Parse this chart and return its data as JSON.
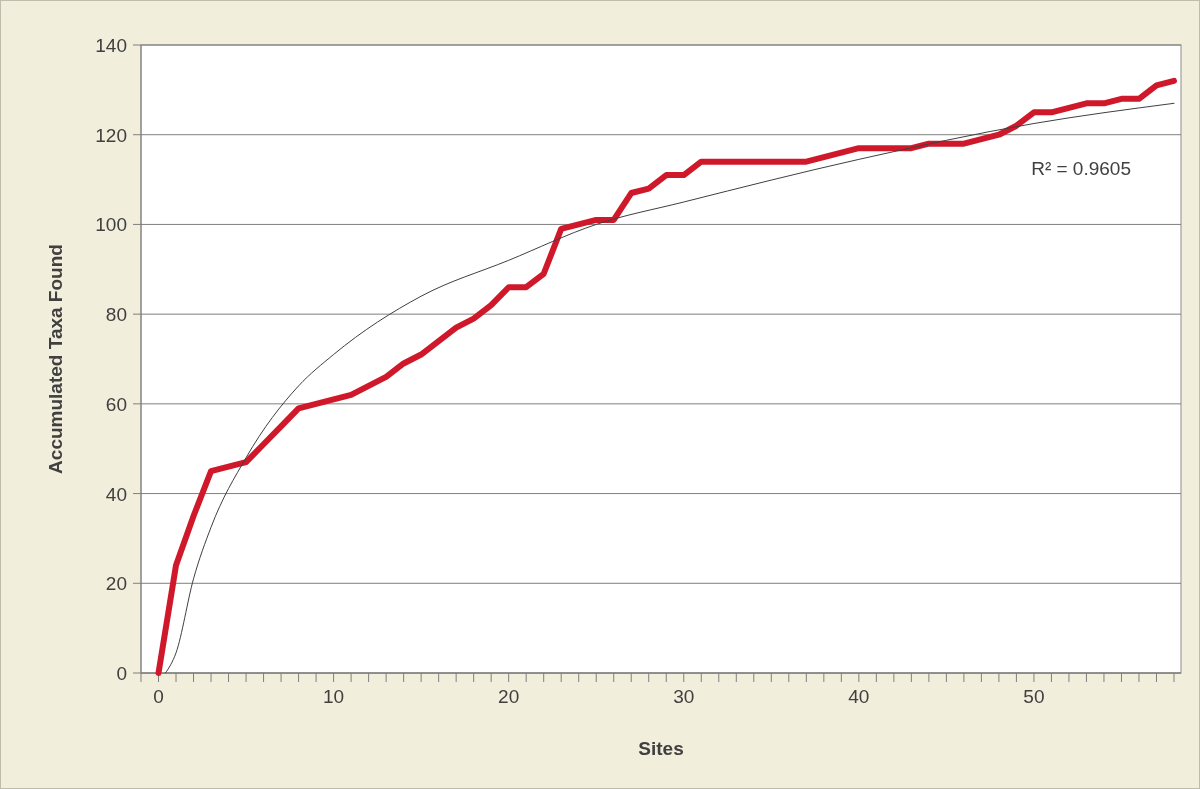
{
  "chart_data": {
    "type": "line",
    "xlabel": "Sites",
    "ylabel": "Accumulated Taxa Found",
    "xlim": [
      -1,
      58.4
    ],
    "ylim": [
      0,
      140
    ],
    "xticks": [
      {
        "value": -1,
        "label": null
      },
      0,
      {
        "value": 1,
        "label": null
      },
      {
        "value": 2,
        "label": null
      },
      {
        "value": 3,
        "label": null
      },
      {
        "value": 4,
        "label": null
      },
      {
        "value": 5,
        "label": null
      },
      {
        "value": 6,
        "label": null
      },
      {
        "value": 7,
        "label": null
      },
      {
        "value": 8,
        "label": null
      },
      {
        "value": 9,
        "label": null
      },
      10,
      {
        "value": 11,
        "label": null
      },
      {
        "value": 12,
        "label": null
      },
      {
        "value": 13,
        "label": null
      },
      {
        "value": 14,
        "label": null
      },
      {
        "value": 15,
        "label": null
      },
      {
        "value": 16,
        "label": null
      },
      {
        "value": 17,
        "label": null
      },
      {
        "value": 18,
        "label": null
      },
      {
        "value": 19,
        "label": null
      },
      20,
      {
        "value": 21,
        "label": null
      },
      {
        "value": 22,
        "label": null
      },
      {
        "value": 23,
        "label": null
      },
      {
        "value": 24,
        "label": null
      },
      {
        "value": 25,
        "label": null
      },
      {
        "value": 26,
        "label": null
      },
      {
        "value": 27,
        "label": null
      },
      {
        "value": 28,
        "label": null
      },
      {
        "value": 29,
        "label": null
      },
      30,
      {
        "value": 31,
        "label": null
      },
      {
        "value": 32,
        "label": null
      },
      {
        "value": 33,
        "label": null
      },
      {
        "value": 34,
        "label": null
      },
      {
        "value": 35,
        "label": null
      },
      {
        "value": 36,
        "label": null
      },
      {
        "value": 37,
        "label": null
      },
      {
        "value": 38,
        "label": null
      },
      {
        "value": 39,
        "label": null
      },
      40,
      {
        "value": 41,
        "label": null
      },
      {
        "value": 42,
        "label": null
      },
      {
        "value": 43,
        "label": null
      },
      {
        "value": 44,
        "label": null
      },
      {
        "value": 45,
        "label": null
      },
      {
        "value": 46,
        "label": null
      },
      {
        "value": 47,
        "label": null
      },
      {
        "value": 48,
        "label": null
      },
      {
        "value": 49,
        "label": null
      },
      50,
      {
        "value": 51,
        "label": null
      },
      {
        "value": 52,
        "label": null
      },
      {
        "value": 53,
        "label": null
      },
      {
        "value": 54,
        "label": null
      },
      {
        "value": 55,
        "label": null
      },
      {
        "value": 56,
        "label": null
      },
      {
        "value": 57,
        "label": null
      },
      {
        "value": 58,
        "label": null
      }
    ],
    "yticks": [
      0,
      20,
      40,
      60,
      80,
      100,
      120,
      140
    ],
    "grid": "y",
    "marker": "none",
    "line_style": "solid",
    "x": [
      0,
      1,
      2,
      3,
      4,
      5,
      6,
      7,
      8,
      9,
      10,
      11,
      12,
      13,
      14,
      15,
      16,
      17,
      18,
      19,
      20,
      21,
      22,
      23,
      24,
      25,
      26,
      27,
      28,
      29,
      30,
      31,
      32,
      33,
      34,
      35,
      36,
      37,
      38,
      39,
      40,
      41,
      42,
      43,
      44,
      45,
      46,
      47,
      48,
      49,
      50,
      51,
      52,
      53,
      54,
      55,
      56,
      57,
      58
    ],
    "series": [
      {
        "color": "#d0182b",
        "values": [
          0,
          24,
          35,
          45,
          46,
          47,
          51,
          55,
          59,
          60,
          61,
          62,
          64,
          66,
          69,
          71,
          74,
          77,
          79,
          82,
          86,
          86,
          89,
          99,
          100,
          101,
          101,
          107,
          108,
          111,
          111,
          114,
          114,
          114,
          114,
          114,
          114,
          114,
          115,
          116,
          117,
          117,
          117,
          117,
          118,
          118,
          118,
          119,
          120,
          122,
          125,
          125,
          126,
          127,
          127,
          128,
          128,
          131,
          132
        ]
      },
      {
        "type": "line",
        "color": "#404040",
        "x": [
          0.4,
          1,
          2,
          3,
          5,
          8,
          10,
          15,
          20,
          25,
          30,
          40,
          50,
          58
        ],
        "values": [
          0,
          4.5,
          21,
          32.5,
          48,
          64,
          71,
          84,
          92,
          100,
          105,
          114.5,
          122.5,
          127
        ]
      }
    ],
    "annotations": [
      "R² = 0.9605"
    ]
  }
}
